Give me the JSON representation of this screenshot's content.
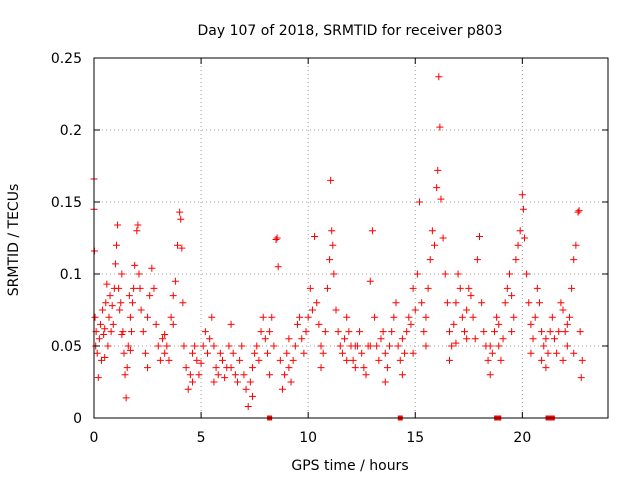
{
  "chart_data": {
    "type": "scatter",
    "title": "Day 107 of 2018, SRMTID for receiver p803",
    "xlabel": "GPS time / hours",
    "ylabel": "SRMTID / TECUs",
    "xlim": [
      0,
      24
    ],
    "ylim": [
      0,
      0.25
    ],
    "xticks": [
      0,
      5,
      10,
      15,
      20
    ],
    "xtick_labels": [
      "0",
      "5",
      "10",
      "15",
      "20"
    ],
    "yticks": [
      0,
      0.05,
      0.1,
      0.15,
      0.2,
      0.25
    ],
    "ytick_labels": [
      "0",
      "0.05",
      "0.1",
      "0.15",
      "0.2",
      "0.25"
    ],
    "grid": true,
    "marker": "+",
    "color": "#ff0000",
    "series": [
      {
        "name": "SRMTID",
        "points": [
          [
            0.0,
            0.166
          ],
          [
            0.0,
            0.145
          ],
          [
            0.02,
            0.116
          ],
          [
            0.05,
            0.07
          ],
          [
            0.08,
            0.05
          ],
          [
            0.1,
            0.06
          ],
          [
            0.15,
            0.045
          ],
          [
            0.2,
            0.028
          ],
          [
            0.25,
            0.055
          ],
          [
            0.3,
            0.065
          ],
          [
            0.35,
            0.04
          ],
          [
            0.4,
            0.075
          ],
          [
            0.45,
            0.058
          ],
          [
            0.5,
            0.062
          ],
          [
            0.55,
            0.08
          ],
          [
            0.6,
            0.093
          ],
          [
            0.65,
            0.05
          ],
          [
            0.7,
            0.07
          ],
          [
            0.75,
            0.085
          ],
          [
            0.8,
            0.06
          ],
          [
            0.85,
            0.078
          ],
          [
            0.9,
            0.065
          ],
          [
            0.95,
            0.09
          ],
          [
            1.0,
            0.107
          ],
          [
            1.05,
            0.12
          ],
          [
            1.1,
            0.134
          ],
          [
            1.15,
            0.09
          ],
          [
            1.2,
            0.075
          ],
          [
            1.25,
            0.08
          ],
          [
            1.3,
            0.1
          ],
          [
            1.35,
            0.06
          ],
          [
            1.4,
            0.045
          ],
          [
            1.45,
            0.03
          ],
          [
            1.5,
            0.014
          ],
          [
            1.55,
            0.035
          ],
          [
            1.6,
            0.05
          ],
          [
            1.65,
            0.085
          ],
          [
            1.7,
            0.07
          ],
          [
            1.75,
            0.06
          ],
          [
            1.8,
            0.08
          ],
          [
            1.85,
            0.09
          ],
          [
            1.9,
            0.106
          ],
          [
            2.0,
            0.13
          ],
          [
            2.05,
            0.134
          ],
          [
            2.1,
            0.1
          ],
          [
            2.15,
            0.09
          ],
          [
            2.2,
            0.075
          ],
          [
            2.3,
            0.06
          ],
          [
            2.4,
            0.045
          ],
          [
            2.5,
            0.07
          ],
          [
            2.6,
            0.085
          ],
          [
            2.7,
            0.104
          ],
          [
            2.8,
            0.09
          ],
          [
            2.9,
            0.065
          ],
          [
            3.0,
            0.05
          ],
          [
            3.1,
            0.04
          ],
          [
            3.2,
            0.055
          ],
          [
            3.3,
            0.058
          ],
          [
            3.4,
            0.05
          ],
          [
            3.5,
            0.04
          ],
          [
            3.6,
            0.07
          ],
          [
            3.7,
            0.085
          ],
          [
            3.8,
            0.095
          ],
          [
            3.9,
            0.12
          ],
          [
            4.0,
            0.143
          ],
          [
            4.05,
            0.138
          ],
          [
            4.1,
            0.118
          ],
          [
            4.15,
            0.08
          ],
          [
            4.2,
            0.05
          ],
          [
            4.3,
            0.035
          ],
          [
            4.4,
            0.02
          ],
          [
            4.5,
            0.03
          ],
          [
            4.6,
            0.045
          ],
          [
            4.7,
            0.05
          ],
          [
            4.8,
            0.04
          ],
          [
            4.9,
            0.03
          ],
          [
            5.0,
            0.038
          ],
          [
            5.1,
            0.05
          ],
          [
            5.2,
            0.06
          ],
          [
            5.3,
            0.045
          ],
          [
            5.4,
            0.055
          ],
          [
            5.5,
            0.07
          ],
          [
            5.6,
            0.05
          ],
          [
            5.7,
            0.035
          ],
          [
            5.8,
            0.03
          ],
          [
            5.9,
            0.045
          ],
          [
            6.0,
            0.04
          ],
          [
            6.1,
            0.028
          ],
          [
            6.2,
            0.035
          ],
          [
            6.3,
            0.05
          ],
          [
            6.4,
            0.065
          ],
          [
            6.5,
            0.045
          ],
          [
            6.6,
            0.03
          ],
          [
            6.7,
            0.025
          ],
          [
            6.8,
            0.04
          ],
          [
            6.9,
            0.05
          ],
          [
            7.0,
            0.03
          ],
          [
            7.1,
            0.02
          ],
          [
            7.2,
            0.008
          ],
          [
            7.3,
            0.025
          ],
          [
            7.4,
            0.035
          ],
          [
            7.5,
            0.045
          ],
          [
            7.6,
            0.05
          ],
          [
            7.7,
            0.04
          ],
          [
            7.8,
            0.06
          ],
          [
            7.9,
            0.07
          ],
          [
            8.0,
            0.055
          ],
          [
            8.1,
            0.045
          ],
          [
            8.2,
            0.06
          ],
          [
            8.3,
            0.07
          ],
          [
            8.4,
            0.05
          ],
          [
            8.5,
            0.124
          ],
          [
            8.55,
            0.125
          ],
          [
            8.6,
            0.105
          ],
          [
            8.7,
            0.04
          ],
          [
            8.8,
            0.02
          ],
          [
            8.9,
            0.03
          ],
          [
            9.0,
            0.045
          ],
          [
            9.1,
            0.035
          ],
          [
            9.2,
            0.025
          ],
          [
            9.3,
            0.04
          ],
          [
            9.4,
            0.05
          ],
          [
            9.5,
            0.065
          ],
          [
            9.6,
            0.07
          ],
          [
            9.7,
            0.055
          ],
          [
            9.8,
            0.045
          ],
          [
            9.9,
            0.06
          ],
          [
            10.0,
            0.07
          ],
          [
            10.1,
            0.09
          ],
          [
            10.2,
            0.075
          ],
          [
            10.3,
            0.126
          ],
          [
            10.4,
            0.08
          ],
          [
            10.5,
            0.065
          ],
          [
            10.6,
            0.05
          ],
          [
            10.7,
            0.045
          ],
          [
            10.8,
            0.06
          ],
          [
            10.9,
            0.09
          ],
          [
            11.0,
            0.11
          ],
          [
            11.05,
            0.165
          ],
          [
            11.1,
            0.13
          ],
          [
            11.15,
            0.12
          ],
          [
            11.2,
            0.1
          ],
          [
            11.3,
            0.075
          ],
          [
            11.4,
            0.06
          ],
          [
            11.5,
            0.05
          ],
          [
            11.6,
            0.045
          ],
          [
            11.7,
            0.055
          ],
          [
            11.8,
            0.07
          ],
          [
            11.9,
            0.06
          ],
          [
            12.0,
            0.05
          ],
          [
            12.1,
            0.04
          ],
          [
            12.2,
            0.035
          ],
          [
            12.3,
            0.05
          ],
          [
            12.4,
            0.06
          ],
          [
            12.5,
            0.045
          ],
          [
            12.6,
            0.035
          ],
          [
            12.7,
            0.03
          ],
          [
            12.8,
            0.05
          ],
          [
            12.9,
            0.095
          ],
          [
            13.0,
            0.13
          ],
          [
            13.1,
            0.07
          ],
          [
            13.2,
            0.05
          ],
          [
            13.3,
            0.04
          ],
          [
            13.4,
            0.055
          ],
          [
            13.5,
            0.06
          ],
          [
            13.6,
            0.045
          ],
          [
            13.7,
            0.035
          ],
          [
            13.8,
            0.05
          ],
          [
            13.9,
            0.06
          ],
          [
            14.0,
            0.07
          ],
          [
            14.1,
            0.08
          ],
          [
            14.2,
            0.05
          ],
          [
            14.3,
            0.04
          ],
          [
            14.4,
            0.03
          ],
          [
            14.5,
            0.045
          ],
          [
            14.6,
            0.06
          ],
          [
            14.7,
            0.07
          ],
          [
            14.8,
            0.065
          ],
          [
            14.9,
            0.09
          ],
          [
            15.0,
            0.075
          ],
          [
            15.1,
            0.1
          ],
          [
            15.2,
            0.15
          ],
          [
            15.3,
            0.08
          ],
          [
            15.4,
            0.06
          ],
          [
            15.5,
            0.07
          ],
          [
            15.6,
            0.09
          ],
          [
            15.7,
            0.11
          ],
          [
            15.8,
            0.13
          ],
          [
            15.9,
            0.12
          ],
          [
            16.0,
            0.16
          ],
          [
            16.05,
            0.172
          ],
          [
            16.1,
            0.237
          ],
          [
            16.15,
            0.202
          ],
          [
            16.2,
            0.152
          ],
          [
            16.3,
            0.125
          ],
          [
            16.4,
            0.1
          ],
          [
            16.5,
            0.08
          ],
          [
            16.6,
            0.06
          ],
          [
            16.7,
            0.05
          ],
          [
            16.8,
            0.065
          ],
          [
            16.9,
            0.08
          ],
          [
            17.0,
            0.1
          ],
          [
            17.1,
            0.09
          ],
          [
            17.2,
            0.07
          ],
          [
            17.3,
            0.06
          ],
          [
            17.4,
            0.075
          ],
          [
            17.5,
            0.09
          ],
          [
            17.6,
            0.085
          ],
          [
            17.7,
            0.07
          ],
          [
            17.8,
            0.055
          ],
          [
            17.9,
            0.11
          ],
          [
            18.0,
            0.126
          ],
          [
            18.1,
            0.08
          ],
          [
            18.2,
            0.06
          ],
          [
            18.3,
            0.05
          ],
          [
            18.4,
            0.04
          ],
          [
            18.5,
            0.03
          ],
          [
            18.6,
            0.045
          ],
          [
            18.7,
            0.06
          ],
          [
            18.8,
            0.07
          ],
          [
            18.9,
            0.05
          ],
          [
            19.0,
            0.04
          ],
          [
            19.1,
            0.055
          ],
          [
            19.2,
            0.08
          ],
          [
            19.3,
            0.09
          ],
          [
            19.4,
            0.1
          ],
          [
            19.5,
            0.085
          ],
          [
            19.6,
            0.07
          ],
          [
            19.7,
            0.11
          ],
          [
            19.8,
            0.12
          ],
          [
            19.9,
            0.13
          ],
          [
            20.0,
            0.155
          ],
          [
            20.05,
            0.145
          ],
          [
            20.1,
            0.125
          ],
          [
            20.2,
            0.1
          ],
          [
            20.3,
            0.08
          ],
          [
            20.4,
            0.065
          ],
          [
            20.5,
            0.055
          ],
          [
            20.6,
            0.07
          ],
          [
            20.7,
            0.09
          ],
          [
            20.8,
            0.08
          ],
          [
            20.9,
            0.06
          ],
          [
            21.0,
            0.05
          ],
          [
            21.1,
            0.035
          ],
          [
            21.2,
            0.045
          ],
          [
            21.3,
            0.06
          ],
          [
            21.4,
            0.07
          ],
          [
            21.5,
            0.055
          ],
          [
            21.6,
            0.045
          ],
          [
            21.7,
            0.06
          ],
          [
            21.8,
            0.08
          ],
          [
            21.9,
            0.075
          ],
          [
            22.0,
            0.06
          ],
          [
            22.1,
            0.05
          ],
          [
            22.2,
            0.07
          ],
          [
            22.3,
            0.09
          ],
          [
            22.4,
            0.11
          ],
          [
            22.5,
            0.12
          ],
          [
            22.6,
            0.143
          ],
          [
            22.65,
            0.144
          ],
          [
            22.7,
            0.06
          ],
          [
            22.75,
            0.028
          ],
          [
            22.8,
            0.04
          ],
          [
            1.3,
            0.058
          ],
          [
            2.5,
            0.035
          ],
          [
            3.3,
            0.045
          ],
          [
            5.6,
            0.025
          ],
          [
            7.4,
            0.015
          ],
          [
            9.1,
            0.055
          ],
          [
            11.8,
            0.04
          ],
          [
            12.9,
            0.05
          ],
          [
            13.6,
            0.025
          ],
          [
            14.4,
            0.055
          ],
          [
            15.5,
            0.05
          ],
          [
            16.6,
            0.04
          ],
          [
            17.4,
            0.055
          ],
          [
            18.5,
            0.05
          ],
          [
            19.5,
            0.06
          ],
          [
            20.4,
            0.045
          ],
          [
            21.1,
            0.055
          ],
          [
            21.9,
            0.04
          ],
          [
            22.4,
            0.045
          ],
          [
            0.5,
            0.042
          ],
          [
            1.7,
            0.047
          ],
          [
            3.7,
            0.065
          ],
          [
            4.6,
            0.025
          ],
          [
            6.4,
            0.035
          ],
          [
            8.2,
            0.03
          ],
          [
            10.6,
            0.035
          ],
          [
            12.2,
            0.05
          ],
          [
            14.9,
            0.045
          ],
          [
            16.9,
            0.052
          ],
          [
            18.9,
            0.065
          ],
          [
            20.9,
            0.04
          ],
          [
            22.1,
            0.065
          ]
        ],
        "zero_markers": [
          8.2,
          14.3,
          18.8,
          18.9,
          21.2,
          21.4
        ]
      }
    ]
  }
}
